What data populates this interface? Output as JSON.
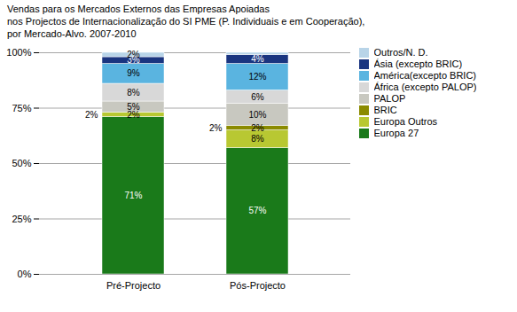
{
  "chart_data": {
    "type": "bar",
    "stacked": true,
    "title": "Vendas para os Mercados Externos das Empresas Apoiadas\nnos Projectos de Internacionalização do SI PME (P. Individuais e em Cooperação),\npor Mercado-Alvo. 2007-2010",
    "categories": [
      "Pré-Projecto",
      "Pós-Projecto"
    ],
    "series": [
      {
        "name": "Europa 27",
        "color": "#1a7a1a",
        "values": [
          71,
          57
        ],
        "value_labels": [
          "71%",
          "57%"
        ]
      },
      {
        "name": "Europa Outros",
        "color": "#b8c832",
        "values": [
          2,
          8
        ],
        "value_labels": [
          "2%",
          "8%"
        ]
      },
      {
        "name": "BRIC",
        "color": "#8b8b00",
        "values": [
          0,
          2
        ],
        "value_labels": [
          null,
          "2%"
        ]
      },
      {
        "name": "PALOP",
        "color": "#c8c8c0",
        "values": [
          5,
          10
        ],
        "value_labels": [
          "5%",
          "10%"
        ]
      },
      {
        "name": "África (excepto PALOP)",
        "color": "#d8d8d8",
        "values": [
          8,
          6
        ],
        "value_labels": [
          "8%",
          "6%"
        ]
      },
      {
        "name": "América(excepto BRIC)",
        "color": "#5ab4e0",
        "values": [
          9,
          12
        ],
        "value_labels": [
          "9%",
          "12%"
        ]
      },
      {
        "name": "Ásia (excepto BRIC)",
        "color": "#1a3580",
        "values": [
          3,
          4
        ],
        "value_labels": [
          "3%",
          "4%"
        ]
      },
      {
        "name": "Outros/N. D.",
        "color": "#b8d4e8",
        "values": [
          2,
          1
        ],
        "value_labels": [
          "2%",
          null
        ]
      }
    ],
    "annotations": [
      {
        "text": "2%",
        "series": "Europa Outros",
        "category": "Pré-Projecto"
      },
      {
        "text": "2%",
        "series": "BRIC",
        "category": "Pós-Projecto"
      }
    ],
    "ylim": [
      0,
      100
    ],
    "yticks": [
      {
        "value": 0,
        "label": "0%"
      },
      {
        "value": 25,
        "label": "25%"
      },
      {
        "value": 50,
        "label": "50%"
      },
      {
        "value": 75,
        "label": "75%"
      },
      {
        "value": 100,
        "label": "100%"
      }
    ],
    "grid": true,
    "data_labels": true,
    "legend": "right"
  }
}
